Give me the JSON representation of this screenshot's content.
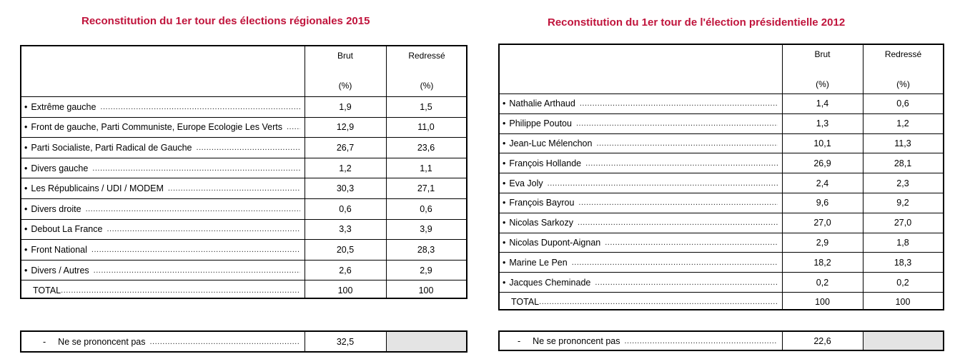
{
  "left": {
    "title": "Reconstitution du 1er tour des élections régionales 2015",
    "col_brut": "Brut",
    "col_redresse": "Redressé",
    "unit": "(%)",
    "rows": [
      {
        "label": "Extrême gauche",
        "brut": "1,9",
        "redresse": "1,5"
      },
      {
        "label": "Front de gauche, Parti Communiste, Europe Ecologie Les Verts",
        "brut": "12,9",
        "redresse": "11,0"
      },
      {
        "label": "Parti Socialiste, Parti Radical de Gauche",
        "brut": "26,7",
        "redresse": "23,6"
      },
      {
        "label": "Divers gauche",
        "brut": "1,2",
        "redresse": "1,1"
      },
      {
        "label": "Les Républicains / UDI / MODEM",
        "brut": "30,3",
        "redresse": "27,1"
      },
      {
        "label": "Divers droite",
        "brut": "0,6",
        "redresse": "0,6"
      },
      {
        "label": "Debout La France",
        "brut": "3,3",
        "redresse": "3,9"
      },
      {
        "label": "Front National",
        "brut": "20,5",
        "redresse": "28,3"
      },
      {
        "label": "Divers / Autres",
        "brut": "2,6",
        "redresse": "2,9"
      }
    ],
    "total": {
      "label": "TOTAL",
      "brut": "100",
      "redresse": "100"
    },
    "nspp": {
      "label": "Ne se prononcent pas",
      "brut": "32,5"
    }
  },
  "right": {
    "title": "Reconstitution du 1er tour de l'élection présidentielle 2012",
    "col_brut": "Brut",
    "col_redresse": "Redressé",
    "unit": "(%)",
    "rows": [
      {
        "label": "Nathalie Arthaud",
        "brut": "1,4",
        "redresse": "0,6"
      },
      {
        "label": "Philippe Poutou",
        "brut": "1,3",
        "redresse": "1,2"
      },
      {
        "label": "Jean-Luc Mélenchon",
        "brut": "10,1",
        "redresse": "11,3"
      },
      {
        "label": "François Hollande",
        "brut": "26,9",
        "redresse": "28,1"
      },
      {
        "label": "Eva Joly",
        "brut": "2,4",
        "redresse": "2,3"
      },
      {
        "label": "François Bayrou",
        "brut": "9,6",
        "redresse": "9,2"
      },
      {
        "label": "Nicolas Sarkozy",
        "brut": "27,0",
        "redresse": "27,0"
      },
      {
        "label": "Nicolas Dupont-Aignan",
        "brut": "2,9",
        "redresse": "1,8"
      },
      {
        "label": "Marine Le Pen",
        "brut": "18,2",
        "redresse": "18,3"
      },
      {
        "label": "Jacques Cheminade",
        "brut": "0,2",
        "redresse": "0,2"
      }
    ],
    "total": {
      "label": "TOTAL",
      "brut": "100",
      "redresse": "100"
    },
    "nspp": {
      "label": "Ne se prononcent pas",
      "brut": "22,6"
    }
  }
}
